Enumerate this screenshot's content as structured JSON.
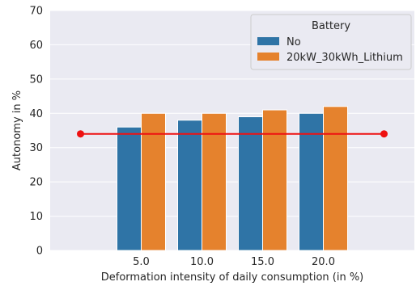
{
  "chart_data": {
    "type": "bar",
    "xlabel": "Deformation intensity of daily consumption (in %)",
    "ylabel": "Autonomy in %",
    "ylim": [
      0,
      70
    ],
    "yticks": [
      0,
      10,
      20,
      30,
      40,
      50,
      60,
      70
    ],
    "ytick_labels": [
      "0",
      "10",
      "20",
      "30",
      "40",
      "50",
      "60",
      "70"
    ],
    "categories": [
      "",
      "5.0",
      "10.0",
      "15.0",
      "20.0",
      ""
    ],
    "grid": true,
    "series": [
      {
        "name": "No",
        "color": "#2f74a6",
        "values": [
          null,
          36,
          38,
          39,
          40,
          null
        ]
      },
      {
        "name": "20kW_30kWh_Lithium",
        "color": "#e5822d",
        "values": [
          null,
          40,
          40,
          41,
          42,
          null
        ]
      }
    ],
    "reference_line": {
      "y": 34,
      "x_from_index": 0,
      "x_to_index": 5,
      "color": "#ee1111"
    },
    "legend": {
      "title": "Battery",
      "placement": "top-right"
    },
    "background": "#eaeaf2"
  }
}
